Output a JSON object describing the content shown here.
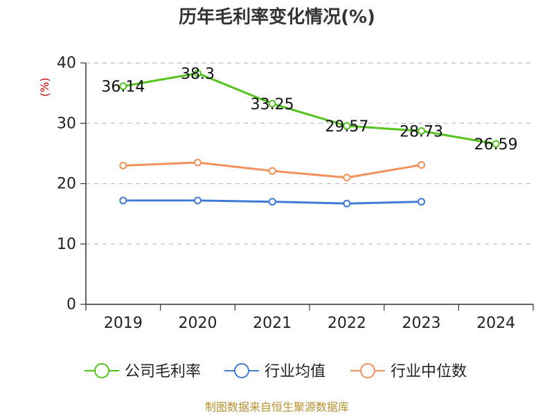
{
  "chart_data": {
    "type": "line",
    "title": "历年毛利率变化情况(%)",
    "unit_label": "(%)",
    "categories": [
      "2019",
      "2020",
      "2021",
      "2022",
      "2023",
      "2024"
    ],
    "ylim": [
      0,
      40
    ],
    "yticks": [
      "0",
      "10",
      "20",
      "30",
      "40"
    ],
    "grid": true,
    "legend_position": "bottom",
    "series": [
      {
        "name": "公司毛利率",
        "color": "#52c41a",
        "values": [
          36.14,
          38.3,
          33.25,
          29.57,
          28.73,
          26.59
        ],
        "labels": [
          "36.14",
          "38.3",
          "33.25",
          "29.57",
          "28.73",
          "26.59"
        ]
      },
      {
        "name": "行业均值",
        "color": "#3f7ad6",
        "values": [
          17.2,
          17.2,
          17.0,
          16.7,
          17.0,
          null
        ]
      },
      {
        "name": "行业中位数",
        "color": "#f4905a",
        "values": [
          23.0,
          23.5,
          22.1,
          21.0,
          23.1,
          null
        ]
      }
    ]
  },
  "footer": {
    "source": "制图数据来自恒生聚源数据库"
  }
}
